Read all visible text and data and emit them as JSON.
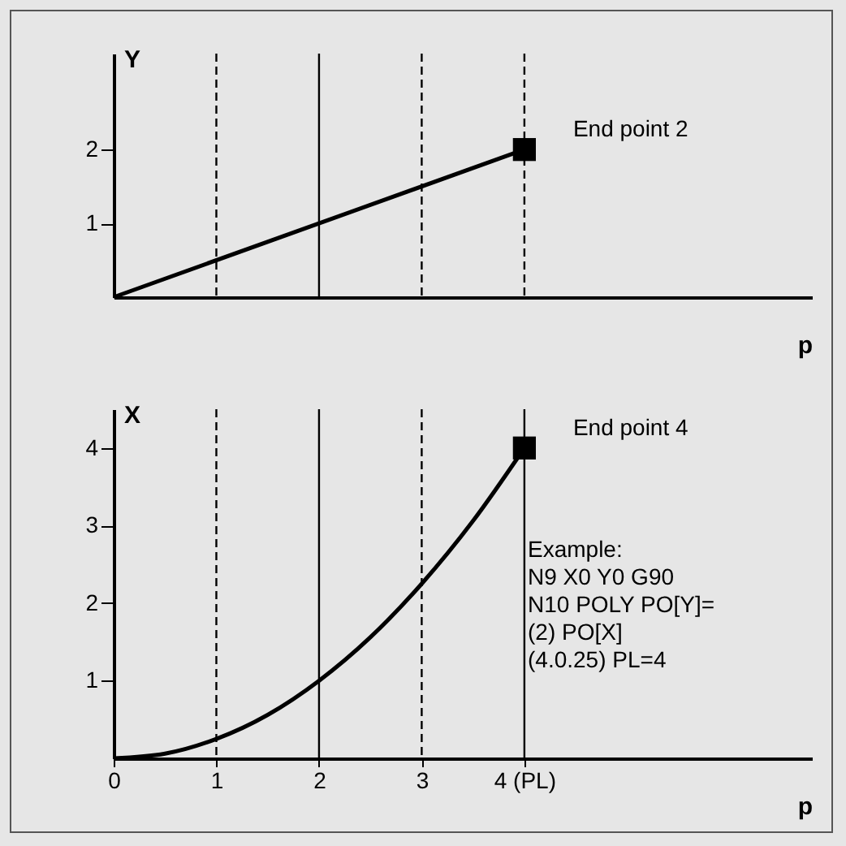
{
  "chart_data": [
    {
      "type": "line",
      "ylabel": "Y",
      "xlabel": "p",
      "xlim": [
        0,
        6.8
      ],
      "ylim": [
        0,
        3.3
      ],
      "yticks": [
        1,
        2
      ],
      "tick_labels": "y",
      "series": [
        {
          "type": "line",
          "color": "#000000",
          "x": [
            0,
            4
          ],
          "values": [
            0,
            2
          ]
        },
        {
          "type": "scatter",
          "color": "#000000",
          "marker": "square",
          "x": [
            4
          ],
          "values": [
            2
          ]
        }
      ],
      "ref_lines": [
        {
          "axis": "x",
          "value": 1,
          "line_style": "dashed",
          "color": "#000000"
        },
        {
          "axis": "x",
          "value": 2,
          "line_style": "solid",
          "color": "#000000"
        },
        {
          "axis": "x",
          "value": 3,
          "line_style": "dashed",
          "color": "#000000"
        },
        {
          "axis": "x",
          "value": 4,
          "line_style": "dashed",
          "color": "#000000"
        }
      ],
      "annotations": [
        {
          "text": "End point 2",
          "x": 4,
          "y": 2
        }
      ]
    },
    {
      "type": "line",
      "ylabel": "X",
      "xlabel": "p",
      "xlim": [
        0,
        6.8
      ],
      "ylim": [
        0,
        4.5
      ],
      "xticks": [
        0,
        1,
        2,
        3,
        {
          "value": 4,
          "label": "4 (PL)"
        }
      ],
      "yticks": [
        1,
        2,
        3,
        4
      ],
      "series": [
        {
          "type": "line",
          "color": "#000000",
          "x": [
            0,
            0.5,
            1,
            1.5,
            2,
            2.5,
            3,
            3.5,
            4
          ],
          "values": [
            0,
            0.06,
            0.25,
            0.56,
            1,
            1.56,
            2.25,
            3.06,
            4
          ]
        },
        {
          "type": "scatter",
          "color": "#000000",
          "marker": "square",
          "x": [
            4
          ],
          "values": [
            4
          ]
        }
      ],
      "ref_lines": [
        {
          "axis": "x",
          "value": 1,
          "line_style": "dashed",
          "color": "#000000"
        },
        {
          "axis": "x",
          "value": 2,
          "line_style": "solid",
          "color": "#000000"
        },
        {
          "axis": "x",
          "value": 3,
          "line_style": "dashed",
          "color": "#000000"
        },
        {
          "axis": "x",
          "value": 4,
          "line_style": "solid",
          "color": "#000000"
        }
      ],
      "annotations": [
        {
          "text": "End point 4",
          "x": 4,
          "y": 4
        },
        "Example:\nN9 X0 Y0 G90\nN10 POLY PO[Y]=\n(2) PO[X]\n(4.0.25) PL=4"
      ]
    }
  ]
}
